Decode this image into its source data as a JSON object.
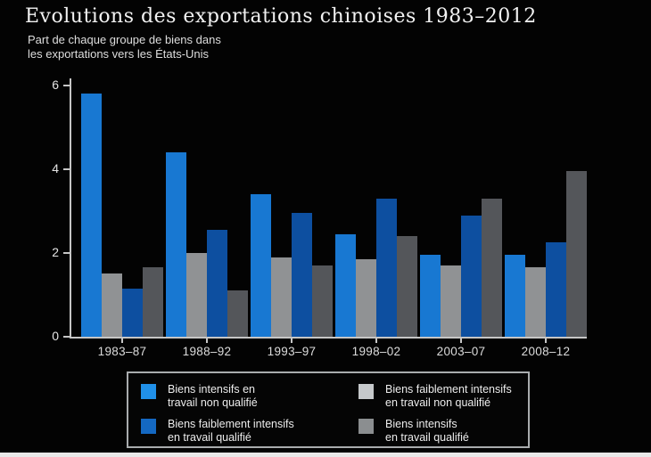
{
  "page": {
    "background": "#030303",
    "bottom_strip_color": "#e9e9e9",
    "axis_color": "#c6c6c6",
    "text_color": "#ececec"
  },
  "title": "Evolutions des exportations chinoises 1983–2012",
  "subtitle": {
    "line1": "Part de chaque groupe de biens dans",
    "line2": "les exportations vers les États-Unis"
  },
  "chart_data": {
    "type": "bar",
    "title": "Evolutions des exportations chinoises 1983–2012",
    "subtitle": "Part de chaque groupe de biens dans les exportations vers les États-Unis",
    "categories": [
      "1983–87",
      "1988–92",
      "1993–97",
      "1998–02",
      "2003–07",
      "2008–12"
    ],
    "series": [
      {
        "name": "Biens intensifs en travail non qualifié",
        "legend_line1": "Biens intensifs en",
        "legend_line2": "travail non qualifié",
        "color": "#1878d2",
        "swatch_color": "#2090e8",
        "values": [
          5.8,
          4.4,
          3.4,
          2.45,
          1.95,
          1.95
        ]
      },
      {
        "name": "Biens faiblement intensifs en travail non qualifié",
        "legend_line1": "Biens faiblement intensifs",
        "legend_line2": "en travail non qualifié",
        "color": "#909294",
        "swatch_color": "#c6c9cb",
        "values": [
          1.5,
          2.0,
          1.9,
          1.85,
          1.7,
          1.65
        ]
      },
      {
        "name": "Biens faiblement intensifs en travail qualifié",
        "legend_line1": "Biens faiblement intensifs",
        "legend_line2": "en travail qualifié",
        "color": "#0d4fa0",
        "swatch_color": "#1468c2",
        "values": [
          1.15,
          2.55,
          2.95,
          3.3,
          2.9,
          2.25
        ]
      },
      {
        "name": "Biens intensifs en travail qualifié",
        "legend_line1": "Biens intensifs",
        "legend_line2": "en travail qualifié",
        "color": "#54565a",
        "swatch_color": "#8b8e90",
        "values": [
          1.65,
          1.1,
          1.7,
          2.4,
          3.3,
          3.95
        ]
      }
    ],
    "ylim": [
      0,
      6
    ],
    "yticks": [
      0,
      2,
      4,
      6
    ],
    "grid": false,
    "legend_position": "bottom",
    "legend_columns": [
      [
        0,
        2
      ],
      [
        1,
        3
      ]
    ]
  }
}
